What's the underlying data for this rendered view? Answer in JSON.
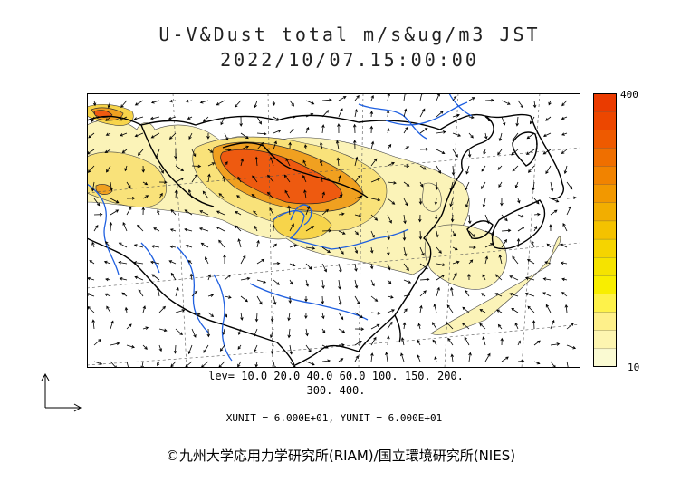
{
  "header": {
    "title": "U-V&Dust total m/s&ug/m3 JST",
    "datetime": "2022/10/07.15:00:00"
  },
  "colorbar": {
    "max_label": "400",
    "min_label": "10",
    "colors": [
      "#fafad2",
      "#fdf5b0",
      "#fef08a",
      "#fef24a",
      "#f8ee00",
      "#f5e300",
      "#f5d400",
      "#f4c200",
      "#f2ae00",
      "#f29800",
      "#f18300",
      "#ef6f00",
      "#ee5a00",
      "#ec4700",
      "#ea3b00"
    ]
  },
  "levels": {
    "line1": "lev= 10.0 20.0 40.0 60.0 100. 150. 200.",
    "line2": "300. 400."
  },
  "units_text": "XUNIT = 6.000E+01, YUNIT = 6.000E+01",
  "credit": "©九州大学応用力学研究所(RIAM)/国立環境研究所(NIES)",
  "palette": {
    "land_line": "#000000",
    "river": "#1e5fe0",
    "grid": "#555555",
    "dust_low": "#fbf3b8",
    "dust_mid": "#f7d44a",
    "dust_high": "#f0a020",
    "dust_peak": "#ee5a10"
  }
}
